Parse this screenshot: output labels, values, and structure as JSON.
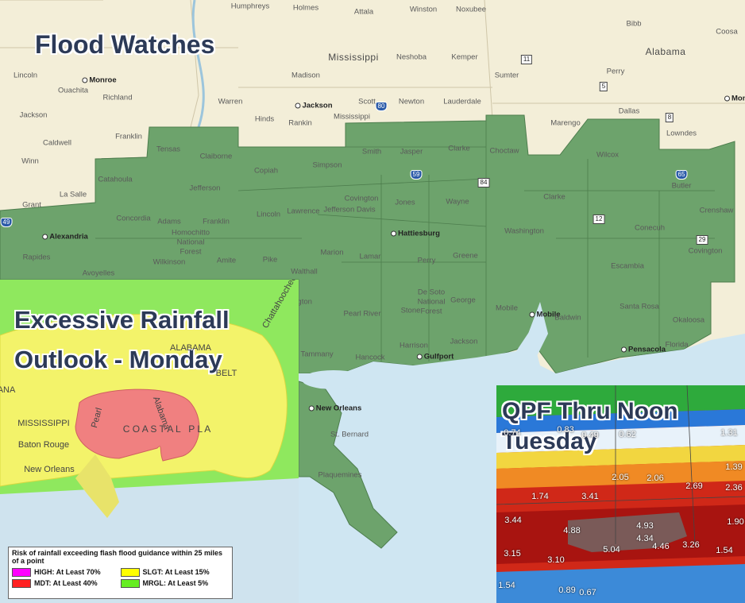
{
  "main_map": {
    "title": "Flood Watches",
    "places": [
      "Humphreys",
      "Holmes",
      "Attala",
      "Winston",
      "Noxubee",
      "Bibb",
      "Coosa",
      "Mississippi",
      "Neshoba",
      "Kemper",
      "Sumter",
      "Alabama",
      "Lincoln",
      "Monroe",
      "Ouachita",
      "Richland",
      "Madison",
      "Perry",
      "Warren",
      "Jackson",
      "Scott",
      "Newton",
      "Lauderdale",
      "Dallas",
      "Jackson",
      "Hinds",
      "Rankin",
      "Mississippi",
      "Marengo",
      "Lowndes",
      "Caldwell",
      "Franklin",
      "Tensas",
      "Claiborne",
      "Smith",
      "Jasper",
      "Clarke",
      "Choctaw",
      "Wilcox",
      "Winn",
      "Catahoula",
      "Copiah",
      "Simpson",
      "Butler",
      "La Salle",
      "Jefferson",
      "Covington",
      "Grant",
      "Jefferson Davis",
      "Jones",
      "Wayne",
      "Clarke",
      "Crenshaw",
      "Concordia",
      "Adams",
      "Franklin",
      "Lincoln",
      "Lawrence",
      "Conecuh",
      "Alexandria",
      "Homochitto",
      "National",
      "Forest",
      "Hattiesburg",
      "Washington",
      "Covington",
      "Rapides",
      "Wilkinson",
      "Amite",
      "Pike",
      "Marion",
      "Lamar",
      "Perry",
      "Greene",
      "Escambia",
      "Avoyelles",
      "Walthall",
      "Washington",
      "De Soto",
      "National",
      "Forest",
      "George",
      "Pearl River",
      "Stone",
      "Mobile",
      "Mobile",
      "Baldwin",
      "Santa Rosa",
      "Okaloosa",
      "Florida",
      "Jackson",
      "Harrison",
      "Pensacola",
      "Hancock",
      "Gulfport",
      "St. Tammany",
      "New Orleans",
      "St. Bernard",
      "Plaquemines",
      "Montgomery"
    ],
    "highway_shields": [
      "11",
      "5",
      "80",
      "8",
      "59",
      "84",
      "65",
      "12",
      "29",
      "49"
    ]
  },
  "ero_inset": {
    "title_lines": [
      "Excessive Rainfall",
      "Outlook - Monday"
    ],
    "labels": [
      "ALABAMA",
      "BELT",
      "MISSISSIPPI",
      "Baton Rouge",
      "New Orleans",
      "C O A S T A L   P L A",
      "Pearl",
      "Alabama",
      "ANA",
      "Chattahoochee"
    ],
    "legend": {
      "title": "Risk of rainfall exceeding flash flood guidance within 25 miles of a point",
      "items": [
        {
          "label": "HIGH: At Least 70%",
          "color": "#ff00ff"
        },
        {
          "label": "SLGT: At Least 15%",
          "color": "#ffff00"
        },
        {
          "label": "MDT: At Least 40%",
          "color": "#ff2020"
        },
        {
          "label": "MRGL: At Least 5%",
          "color": "#66ee22"
        }
      ]
    }
  },
  "qpf_inset": {
    "title_lines": [
      "QPF Thru Noon",
      "Tuesday"
    ],
    "amounts": [
      "0.74",
      "0.83",
      "0.49",
      "0.62",
      "1.31",
      "1.39",
      "2.05",
      "2.06",
      "2.69",
      "2.36",
      "1.74",
      "3.41",
      "3.44",
      "1.90",
      "4.88",
      "4.93",
      "4.34",
      "4.46",
      "3.26",
      "5.04",
      "1.54",
      "3.15",
      "3.10",
      "1.54",
      "0.89",
      "0.67"
    ]
  }
}
